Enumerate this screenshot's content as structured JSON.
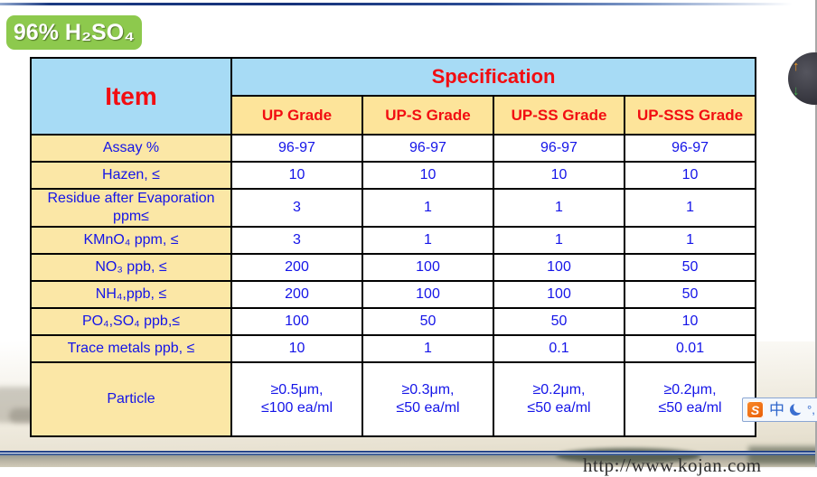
{
  "page": {
    "title_badge": "96% H₂SO₄",
    "footer_url": "http://www.kojan.com"
  },
  "colors": {
    "badge_green": "#8dc94d",
    "header_blue": "#a7dbf5",
    "grade_yellow": "#fde49a",
    "label_yellow": "#fbe7a6",
    "text_red": "#f20d11",
    "text_blue": "#1414e8",
    "border_black": "#000000",
    "slide_line_blue": "#24448a"
  },
  "table": {
    "item_header": "Item",
    "spec_header": "Specification",
    "grade_headers": [
      "UP Grade",
      "UP-S Grade",
      "UP-SS Grade",
      "UP-SSS Grade"
    ],
    "rows": [
      {
        "label": "Assay %",
        "values": [
          "96-97",
          "96-97",
          "96-97",
          "96-97"
        ]
      },
      {
        "label": "Hazen, ≤",
        "values": [
          "10",
          "10",
          "10",
          "10"
        ]
      },
      {
        "label": "Residue after Evaporation\nppm≤",
        "values": [
          "3",
          "1",
          "1",
          "1"
        ]
      },
      {
        "label": "KMnO₄ ppm, ≤",
        "values": [
          "3",
          "1",
          "1",
          "1"
        ]
      },
      {
        "label": "NO₃ ppb, ≤",
        "values": [
          "200",
          "100",
          "100",
          "50"
        ]
      },
      {
        "label": "NH₄,ppb, ≤",
        "values": [
          "200",
          "100",
          "100",
          "50"
        ]
      },
      {
        "label": "PO₄,SO₄ ppb,≤",
        "values": [
          "100",
          "50",
          "50",
          "10"
        ]
      },
      {
        "label": "Trace metals ppb, ≤",
        "values": [
          "10",
          "1",
          "0.1",
          "0.01"
        ]
      },
      {
        "label": "Particle",
        "values": [
          "≥0.5μm,\n≤100 ea/ml",
          "≥0.3μm,\n≤50 ea/ml",
          "≥0.2μm,\n≤50 ea/ml",
          "≥0.2μm,\n≤50 ea/ml"
        ]
      }
    ]
  },
  "ime_bar": {
    "sogou_logo": "S",
    "mode": "中",
    "punct": "°,"
  }
}
